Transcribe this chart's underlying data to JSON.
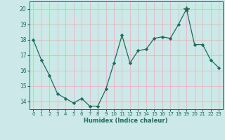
{
  "x": [
    0,
    1,
    2,
    3,
    4,
    5,
    6,
    7,
    8,
    9,
    10,
    11,
    12,
    13,
    14,
    15,
    16,
    17,
    18,
    19,
    20,
    21,
    22,
    23
  ],
  "y": [
    18.0,
    16.7,
    15.7,
    14.5,
    14.2,
    13.9,
    14.2,
    13.7,
    13.7,
    14.8,
    16.5,
    18.3,
    16.5,
    17.3,
    17.4,
    18.1,
    18.2,
    18.1,
    19.0,
    20.0,
    17.7,
    17.7,
    16.7,
    16.2
  ],
  "star_x": 19,
  "star_y": 20.0,
  "xlabel": "Humidex (Indice chaleur)",
  "xlim": [
    -0.5,
    23.5
  ],
  "ylim": [
    13.5,
    20.5
  ],
  "yticks": [
    14,
    15,
    16,
    17,
    18,
    19,
    20
  ],
  "xticks": [
    0,
    1,
    2,
    3,
    4,
    5,
    6,
    7,
    8,
    9,
    10,
    11,
    12,
    13,
    14,
    15,
    16,
    17,
    18,
    19,
    20,
    21,
    22,
    23
  ],
  "line_color": "#1a6b5e",
  "marker": "D",
  "marker_size": 2.2,
  "bg_color": "#cce8e8",
  "grid_color": "#e8b0b0",
  "spine_color": "#1a6b5e",
  "tick_label_color": "#1a6b5e",
  "xlabel_fontsize": 6.0,
  "tick_fontsize": 5.0,
  "linewidth": 0.9
}
